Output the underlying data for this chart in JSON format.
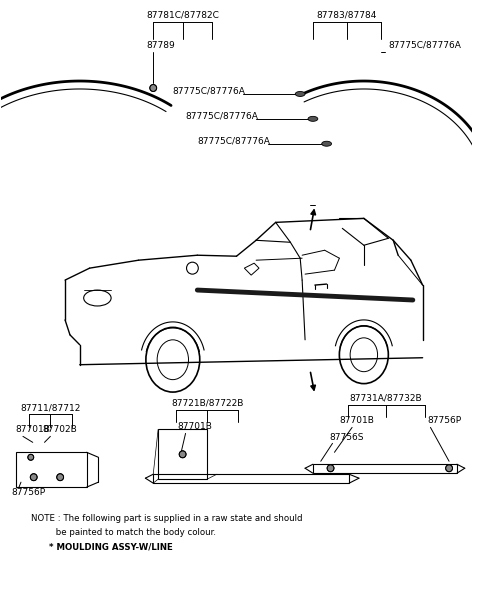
{
  "bg_color": "#ffffff",
  "fig_width": 4.8,
  "fig_height": 6.03,
  "dpi": 100,
  "note_line1": "NOTE : The following part is supplied in a raw state and should",
  "note_line2": "         be painted to match the body colour.",
  "note_line3": "      * MOULDING ASSY-W/LINE",
  "lc": "#000000",
  "tc": "#000000",
  "fs": 6.5,
  "fs_note": 6.2
}
